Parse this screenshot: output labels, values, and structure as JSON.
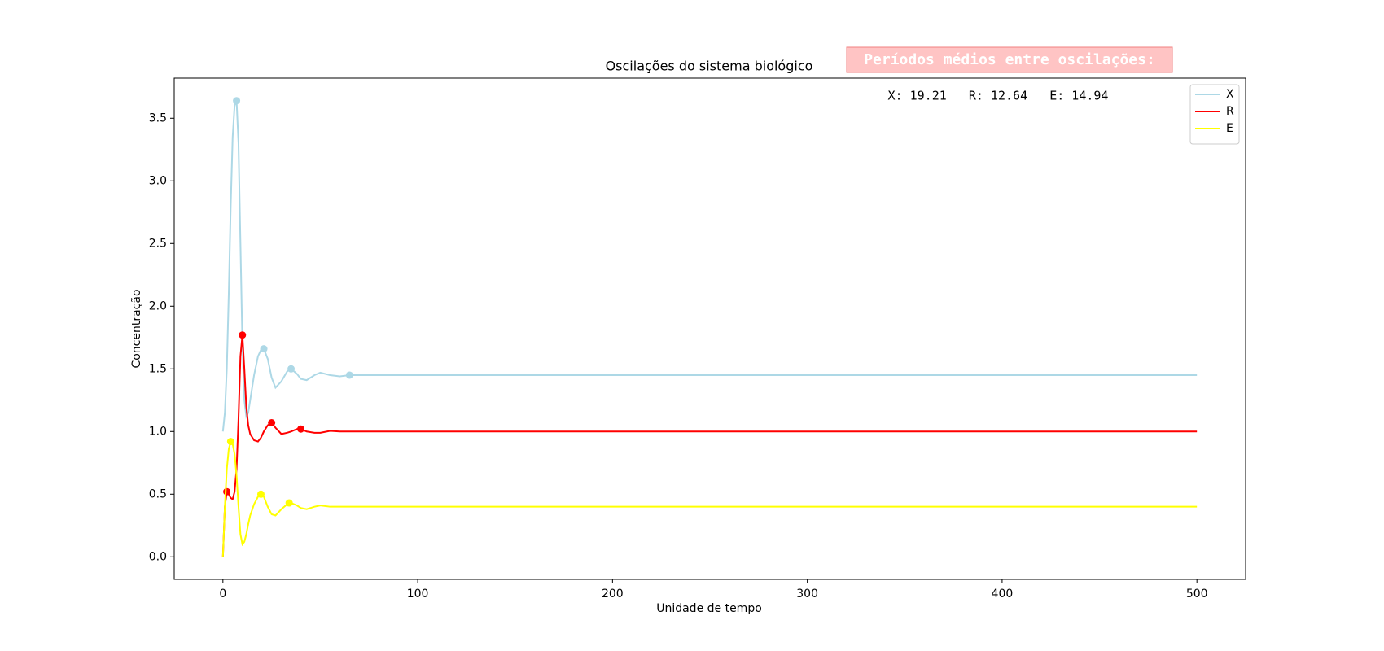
{
  "chart_data": {
    "type": "line",
    "title": "Oscilações do sistema biológico",
    "xlabel": "Unidade de tempo",
    "ylabel": "Concentração",
    "annotation_title": "Períodos médios entre oscilações:",
    "annotation_text": "X: 19.21   R: 12.64   E: 14.94",
    "legend": "upper right",
    "xlim": [
      -25,
      525
    ],
    "ylim": [
      -0.18,
      3.82
    ],
    "xticks": [
      0,
      100,
      200,
      300,
      400,
      500
    ],
    "yticks": [
      {
        "value": 0,
        "label": "0.0"
      },
      0.5,
      {
        "value": 1,
        "label": "1.0"
      },
      1.5,
      {
        "value": 2,
        "label": "2.0"
      },
      2.5,
      {
        "value": 3,
        "label": "3.0"
      },
      3.5
    ],
    "x": [
      0,
      1,
      2,
      3,
      4,
      5,
      6,
      7,
      8,
      9,
      10,
      11,
      12,
      13,
      14,
      16,
      18,
      19.5,
      21,
      23,
      25,
      27,
      30,
      33,
      35,
      38,
      40,
      43,
      47,
      50,
      55,
      60,
      65,
      70,
      80,
      100,
      500
    ],
    "series": [
      {
        "name": "X",
        "color": "#add8e6",
        "values": [
          1.0,
          1.15,
          1.5,
          2.1,
          2.8,
          3.35,
          3.6,
          3.64,
          3.3,
          2.5,
          1.7,
          1.25,
          1.12,
          1.15,
          1.25,
          1.45,
          1.6,
          1.65,
          1.66,
          1.58,
          1.43,
          1.35,
          1.4,
          1.48,
          1.5,
          1.46,
          1.42,
          1.41,
          1.45,
          1.47,
          1.45,
          1.44,
          1.45,
          1.45,
          1.45,
          1.45,
          1.45
        ],
        "peaks": {
          "x": [
            7,
            21,
            35,
            65
          ],
          "y": [
            3.64,
            1.66,
            1.5,
            1.45
          ]
        }
      },
      {
        "name": "R",
        "color": "#ff0000",
        "values": [
          0.0,
          0.4,
          0.52,
          0.5,
          0.47,
          0.46,
          0.52,
          0.7,
          1.1,
          1.6,
          1.77,
          1.5,
          1.2,
          1.05,
          0.98,
          0.93,
          0.92,
          0.95,
          1.0,
          1.05,
          1.07,
          1.03,
          0.98,
          0.99,
          1.0,
          1.02,
          1.02,
          1.0,
          0.99,
          0.99,
          1.005,
          1.0,
          1.0,
          1.0,
          1.0,
          1.0,
          1.0
        ],
        "peaks": {
          "x": [
            2,
            10,
            25,
            40
          ],
          "y": [
            0.52,
            1.77,
            1.07,
            1.02
          ]
        }
      },
      {
        "name": "E",
        "color": "#ffff00",
        "values": [
          0.0,
          0.4,
          0.7,
          0.86,
          0.92,
          0.9,
          0.82,
          0.65,
          0.4,
          0.18,
          0.1,
          0.12,
          0.18,
          0.26,
          0.33,
          0.42,
          0.48,
          0.5,
          0.48,
          0.4,
          0.34,
          0.33,
          0.38,
          0.42,
          0.43,
          0.41,
          0.39,
          0.38,
          0.4,
          0.41,
          0.4,
          0.4,
          0.4,
          0.4,
          0.4,
          0.4,
          0.4
        ],
        "peaks": {
          "x": [
            4,
            19.5,
            34
          ],
          "y": [
            0.92,
            0.5,
            0.43
          ]
        }
      }
    ]
  }
}
